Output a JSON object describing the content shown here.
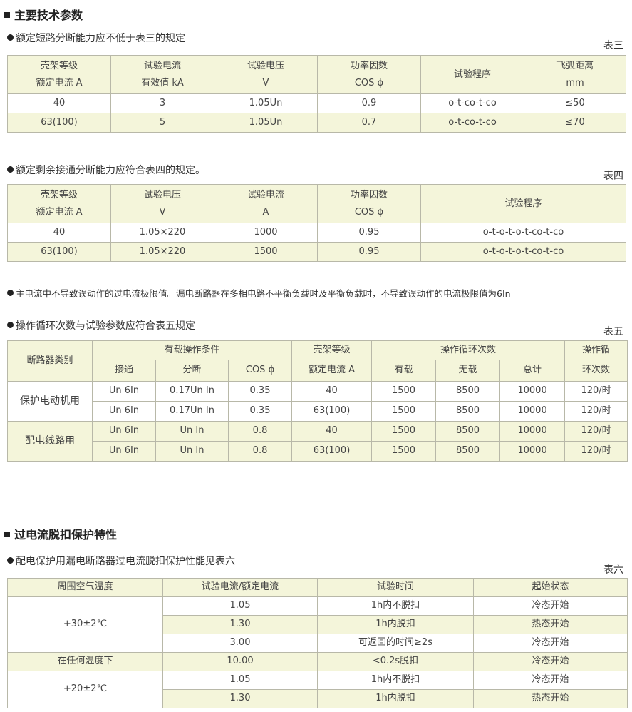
{
  "colors": {
    "header_bg": "#f4f5da",
    "border": "#b8b8a8"
  },
  "section1": {
    "title": "主要技术参数"
  },
  "bullet1": "额定短路分断能力应不低于表三的规定",
  "table3": {
    "label": "表三",
    "header": [
      [
        "壳架等级",
        "额定电流 A"
      ],
      [
        "试验电流",
        "有效值 kA"
      ],
      [
        "试验电压",
        "V"
      ],
      [
        "功率因数",
        "COS ϕ"
      ],
      [
        "试验程序"
      ],
      [
        "飞弧距离",
        "mm"
      ]
    ],
    "rows": [
      [
        "40",
        "3",
        "1.05Un",
        "0.9",
        "o-t-co-t-co",
        "≤50"
      ],
      [
        "63(100)",
        "5",
        "1.05Un",
        "0.7",
        "o-t-co-t-co",
        "≤70"
      ]
    ]
  },
  "bullet2": "额定剩余接通分断能力应符合表四的规定。",
  "table4": {
    "label": "表四",
    "header": [
      [
        "壳架等级",
        "额定电流 A"
      ],
      [
        "试验电压",
        "V"
      ],
      [
        "试验电流",
        "A"
      ],
      [
        "功率因数",
        "COS ϕ"
      ],
      [
        "试验程序"
      ]
    ],
    "rows": [
      [
        "40",
        "1.05×220",
        "1000",
        "0.95",
        "o-t-o-t-o-t-co-t-co"
      ],
      [
        "63(100)",
        "1.05×220",
        "1500",
        "0.95",
        "o-t-o-t-o-t-co-t-co"
      ]
    ]
  },
  "bullet3": "主电流中不导致误动作的过电流极限值。漏电断路器在多相电路不平衡负载时及平衡负载时，不导致误动作的电流极限值为6In",
  "bullet4": "操作循环次数与试验参数应符合表五规定",
  "table5": {
    "label": "表五",
    "header_top": [
      "断路器类别",
      "有载操作条件",
      "壳架等级",
      "操作循环次数",
      "操作循"
    ],
    "header_sub": [
      "接通",
      "分断",
      "COS ϕ",
      "额定电流 A",
      "有载",
      "无载",
      "总计",
      "环次数"
    ],
    "groups": [
      {
        "name": "保护电动机用",
        "rows": [
          [
            "Un 6In",
            "0.17Un In",
            "0.35",
            "40",
            "1500",
            "8500",
            "10000",
            "120/时"
          ],
          [
            "Un 6In",
            "0.17Un In",
            "0.35",
            "63(100)",
            "1500",
            "8500",
            "10000",
            "120/时"
          ]
        ]
      },
      {
        "name": "配电线路用",
        "rows": [
          [
            "Un 6In",
            "Un In",
            "0.8",
            "40",
            "1500",
            "8500",
            "10000",
            "120/时"
          ],
          [
            "Un 6In",
            "Un In",
            "0.8",
            "63(100)",
            "1500",
            "8500",
            "10000",
            "120/时"
          ]
        ]
      }
    ]
  },
  "section2": {
    "title": "过电流脱扣保护特性"
  },
  "bullet5": "配电保护用漏电断路器过电流脱扣保护性能见表六",
  "table6": {
    "label": "表六",
    "header": [
      "周围空气温度",
      "试验电流/额定电流",
      "试验时间",
      "起始状态"
    ],
    "groups": [
      {
        "name": "+30±2℃",
        "rows": [
          [
            "1.05",
            "1h内不脱扣",
            "冷态开始"
          ],
          [
            "1.30",
            "1h内脱扣",
            "热态开始"
          ],
          [
            "3.00",
            "可返回的时间≥2s",
            "冷态开始"
          ]
        ]
      },
      {
        "name": "在任何温度下",
        "rows": [
          [
            "10.00",
            "<0.2s脱扣",
            "冷态开始"
          ]
        ]
      },
      {
        "name": "+20±2℃",
        "rows": [
          [
            "1.05",
            "1h内不脱扣",
            "冷态开始"
          ],
          [
            "1.30",
            "1h内脱扣",
            "热态开始"
          ]
        ]
      }
    ]
  }
}
